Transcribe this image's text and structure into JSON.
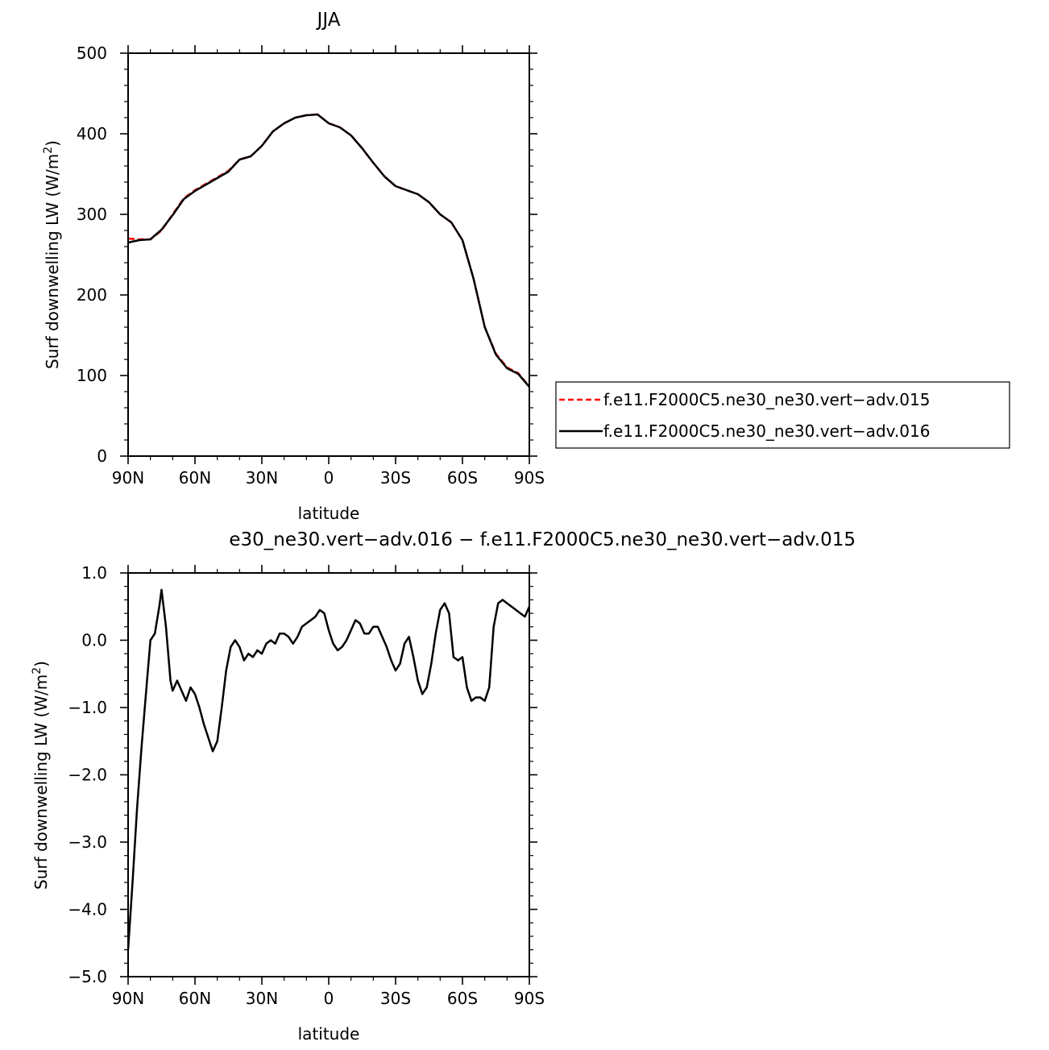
{
  "chart_data": [
    {
      "type": "line",
      "title": "JJA",
      "xlabel": "latitude",
      "ylabel": "Surf downwelling LW (W/m",
      "ylabel_sup": "2",
      "ylabel_close": ")",
      "xlim": [
        90,
        -90
      ],
      "ylim": [
        0,
        500
      ],
      "x_ticks": [
        90,
        60,
        30,
        0,
        -30,
        -60,
        -90
      ],
      "x_tick_labels": [
        "90N",
        "60N",
        "30N",
        "0",
        "30S",
        "60S",
        "90S"
      ],
      "y_ticks": [
        0,
        100,
        200,
        300,
        400,
        500
      ],
      "y_tick_labels": [
        "0",
        "100",
        "200",
        "300",
        "400",
        "500"
      ],
      "legend": "right-bottom, outside",
      "series": [
        {
          "name": "f.e11.F2000C5.ne30_ne30.vert−adv.015",
          "color": "#ff0000",
          "dash": "dashed",
          "x": [
            90,
            85,
            80,
            75,
            70,
            65,
            60,
            55,
            50,
            45,
            40,
            35,
            30,
            25,
            20,
            15,
            10,
            5,
            0,
            -5,
            -10,
            -15,
            -20,
            -25,
            -30,
            -35,
            -40,
            -45,
            -50,
            -55,
            -60,
            -65,
            -70,
            -75,
            -80,
            -85,
            -90
          ],
          "y": [
            270,
            269,
            269,
            280,
            300,
            320,
            330,
            338,
            346,
            354,
            368,
            372,
            385,
            403,
            413,
            420,
            423,
            424,
            413,
            408,
            398,
            382,
            364,
            347,
            335,
            330,
            325,
            315,
            300,
            290,
            268,
            220,
            160,
            127,
            110,
            103,
            86
          ]
        },
        {
          "name": "f.e11.F2000C5.ne30_ne30.vert−adv.016",
          "color": "#000000",
          "dash": "solid",
          "x": [
            90,
            85,
            80,
            75,
            70,
            65,
            60,
            55,
            50,
            45,
            40,
            35,
            30,
            25,
            20,
            15,
            10,
            5,
            0,
            -5,
            -10,
            -15,
            -20,
            -25,
            -30,
            -35,
            -40,
            -45,
            -50,
            -55,
            -60,
            -65,
            -70,
            -75,
            -80,
            -85,
            -90
          ],
          "y": [
            265,
            268,
            269,
            281,
            299,
            319,
            329,
            337,
            345,
            353,
            368,
            372,
            385,
            403,
            413,
            420,
            423,
            424,
            413,
            408,
            398,
            382,
            364,
            347,
            335,
            330,
            325,
            315,
            300,
            290,
            268,
            220,
            160,
            126,
            109,
            102,
            86
          ]
        }
      ]
    },
    {
      "type": "line",
      "title": "e30_ne30.vert−adv.016 − f.e11.F2000C5.ne30_ne30.vert−adv.015",
      "xlabel": "latitude",
      "ylabel": "Surf downwelling LW (W/m",
      "ylabel_sup": "2",
      "ylabel_close": ")",
      "xlim": [
        90,
        -90
      ],
      "ylim": [
        -5.0,
        1.0
      ],
      "x_ticks": [
        90,
        60,
        30,
        0,
        -30,
        -60,
        -90
      ],
      "x_tick_labels": [
        "90N",
        "60N",
        "30N",
        "0",
        "30S",
        "60S",
        "90S"
      ],
      "y_ticks": [
        1.0,
        0.0,
        -1.0,
        -2.0,
        -3.0,
        -4.0,
        -5.0
      ],
      "y_tick_labels": [
        "1.0",
        "0.0",
        "−1.0",
        "−2.0",
        "−3.0",
        "−4.0",
        "−5.0"
      ],
      "series": [
        {
          "color": "#000000",
          "x": [
            90,
            88,
            86,
            84,
            82,
            80,
            78,
            76,
            75,
            73,
            71,
            70,
            68,
            66,
            64,
            62,
            60,
            58,
            56,
            54,
            52,
            50,
            48,
            46,
            44,
            42,
            40,
            38,
            36,
            34,
            32,
            30,
            28,
            26,
            24,
            22,
            20,
            18,
            16,
            14,
            12,
            10,
            8,
            6,
            4,
            2,
            0,
            -2,
            -4,
            -6,
            -8,
            -10,
            -12,
            -14,
            -16,
            -18,
            -20,
            -22,
            -24,
            -26,
            -28,
            -30,
            -32,
            -34,
            -36,
            -38,
            -40,
            -42,
            -44,
            -46,
            -48,
            -50,
            -52,
            -54,
            -56,
            -58,
            -60,
            -62,
            -64,
            -66,
            -68,
            -70,
            -72,
            -74,
            -76,
            -78,
            -80,
            -82,
            -84,
            -86,
            -88,
            -90
          ],
          "y": [
            -4.6,
            -3.6,
            -2.5,
            -1.6,
            -0.8,
            0.0,
            0.1,
            0.5,
            0.75,
            0.2,
            -0.6,
            -0.75,
            -0.6,
            -0.75,
            -0.9,
            -0.7,
            -0.8,
            -1.0,
            -1.25,
            -1.45,
            -1.65,
            -1.5,
            -1.0,
            -0.45,
            -0.1,
            0.0,
            -0.1,
            -0.3,
            -0.2,
            -0.25,
            -0.15,
            -0.2,
            -0.05,
            0.0,
            -0.05,
            0.1,
            0.1,
            0.05,
            -0.05,
            0.05,
            0.2,
            0.25,
            0.3,
            0.35,
            0.45,
            0.4,
            0.15,
            -0.05,
            -0.15,
            -0.1,
            0.0,
            0.15,
            0.3,
            0.25,
            0.1,
            0.1,
            0.2,
            0.2,
            0.05,
            -0.1,
            -0.3,
            -0.45,
            -0.35,
            -0.05,
            0.05,
            -0.25,
            -0.6,
            -0.8,
            -0.7,
            -0.35,
            0.1,
            0.45,
            0.55,
            0.4,
            -0.25,
            -0.3,
            -0.25,
            -0.7,
            -0.9,
            -0.85,
            -0.85,
            -0.9,
            -0.7,
            0.2,
            0.55,
            0.6,
            0.55,
            0.5,
            0.45,
            0.4,
            0.35,
            0.5
          ]
        }
      ]
    }
  ]
}
